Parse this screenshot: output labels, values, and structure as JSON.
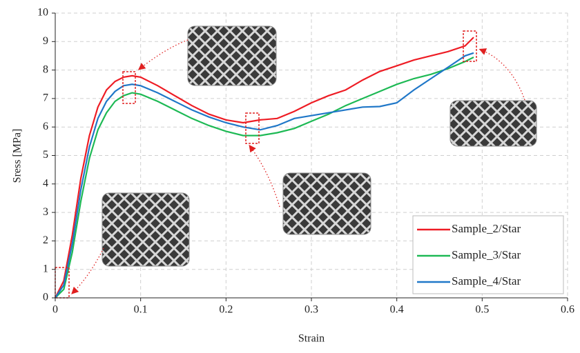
{
  "chart_data": {
    "type": "line",
    "xlabel": "Strain",
    "ylabel": "Sress [MPa]",
    "xlim": [
      0,
      0.6
    ],
    "xticks": [
      0,
      0.1,
      0.2,
      0.3,
      0.4,
      0.5,
      0.6
    ],
    "ylim": [
      0,
      10
    ],
    "yticks": [
      0,
      1,
      2,
      3,
      4,
      5,
      6,
      7,
      8,
      9,
      10
    ],
    "grid": true,
    "legend": "lower right",
    "x": [
      0,
      0.01,
      0.02,
      0.03,
      0.04,
      0.05,
      0.06,
      0.07,
      0.08,
      0.09,
      0.1,
      0.12,
      0.14,
      0.16,
      0.18,
      0.2,
      0.22,
      0.24,
      0.26,
      0.28,
      0.3,
      0.32,
      0.34,
      0.36,
      0.38,
      0.4,
      0.42,
      0.44,
      0.46,
      0.48,
      0.49
    ],
    "series": [
      {
        "name": "Sample_2/Star",
        "color": "#ee1c24",
        "values": [
          0,
          0.6,
          2.2,
          4.2,
          5.7,
          6.7,
          7.3,
          7.6,
          7.75,
          7.8,
          7.75,
          7.45,
          7.1,
          6.75,
          6.45,
          6.25,
          6.15,
          6.25,
          6.3,
          6.55,
          6.85,
          7.1,
          7.3,
          7.65,
          7.95,
          8.15,
          8.35,
          8.5,
          8.65,
          8.85,
          9.15
        ]
      },
      {
        "name": "Sample_3/Star",
        "color": "#1db954",
        "values": [
          0,
          0.3,
          1.6,
          3.4,
          4.9,
          5.9,
          6.5,
          6.9,
          7.1,
          7.2,
          7.15,
          6.9,
          6.6,
          6.3,
          6.05,
          5.85,
          5.7,
          5.7,
          5.8,
          5.95,
          6.2,
          6.45,
          6.75,
          7.0,
          7.25,
          7.5,
          7.7,
          7.85,
          8.05,
          8.3,
          8.45
        ]
      },
      {
        "name": "Sample_4/Star",
        "color": "#1f77c8",
        "values": [
          0,
          0.45,
          1.9,
          3.8,
          5.3,
          6.3,
          6.9,
          7.25,
          7.45,
          7.5,
          7.45,
          7.2,
          6.9,
          6.6,
          6.35,
          6.15,
          6.0,
          5.9,
          6.05,
          6.3,
          6.4,
          6.5,
          6.6,
          6.7,
          6.72,
          6.85,
          7.3,
          7.7,
          8.1,
          8.5,
          8.6
        ]
      }
    ]
  }
}
